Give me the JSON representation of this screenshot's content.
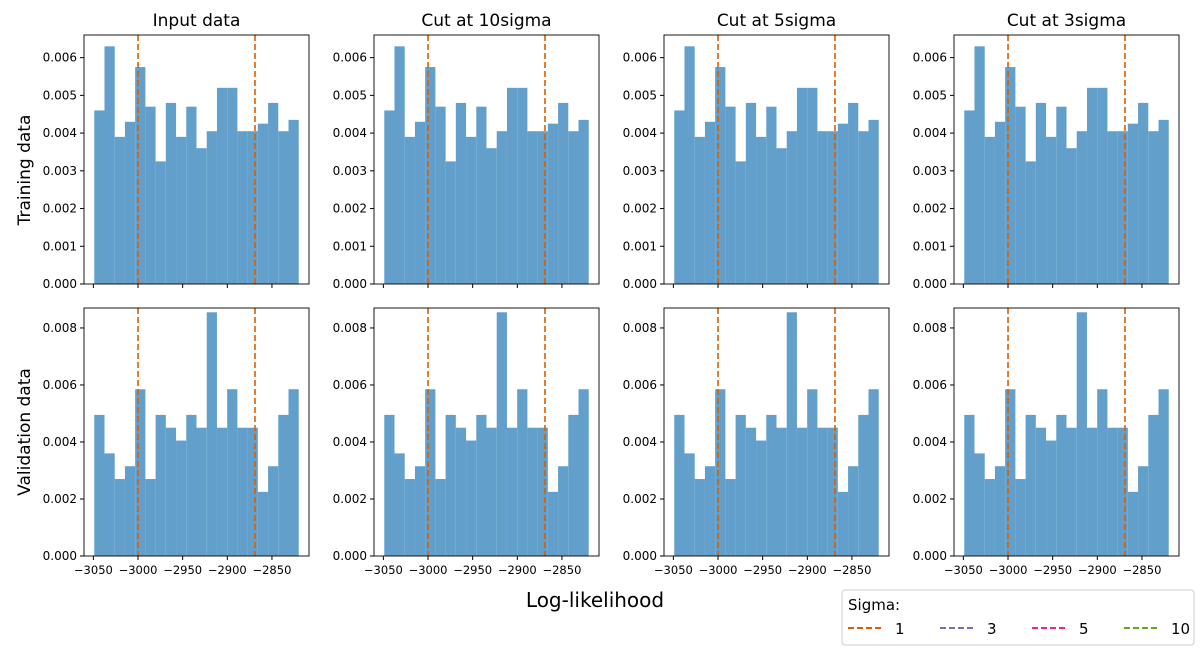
{
  "chart_data": [
    {
      "type": "histogram",
      "title": "Input data",
      "bins": [
        -3049,
        -3037.55,
        -3026.1,
        -3014.65,
        -3003.2,
        -2991.75,
        -2980.3,
        -2968.85,
        -2957.4,
        -2945.95,
        -2934.5,
        -2923.05,
        -2911.6,
        -2900.15,
        -2888.7,
        -2877.25,
        -2865.8,
        -2854.35,
        -2842.9,
        -2831.45,
        -2820
      ],
      "values": [
        0.0046,
        0.0063,
        0.0039,
        0.0043,
        0.00575,
        0.0047,
        0.00325,
        0.0048,
        0.0039,
        0.0047,
        0.0036,
        0.00405,
        0.0052,
        0.0052,
        0.00405,
        0.00405,
        0.00425,
        0.0048,
        0.00405,
        0.00435
      ],
      "color": "#62a0cb",
      "xlim": [
        -3060.5,
        -2808.5
      ],
      "xticks": [
        -3050,
        -3000,
        -2950,
        -2900,
        -2850
      ],
      "ylim": [
        0,
        0.0066
      ],
      "yticks": [
        {
          "value": 0,
          "label": "0.000"
        },
        {
          "value": 0.001,
          "label": "0.001"
        },
        {
          "value": 0.002,
          "label": "0.002"
        },
        {
          "value": 0.003,
          "label": "0.003"
        },
        {
          "value": 0.004,
          "label": "0.004"
        },
        {
          "value": 0.005,
          "label": "0.005"
        },
        {
          "value": 0.006,
          "label": "0.006"
        }
      ],
      "vlines": [
        -3000,
        -2869
      ],
      "vline_color": "#d95f02"
    },
    {
      "type": "histogram",
      "title": "Cut at 10sigma",
      "bins": [
        -3049,
        -3037.55,
        -3026.1,
        -3014.65,
        -3003.2,
        -2991.75,
        -2980.3,
        -2968.85,
        -2957.4,
        -2945.95,
        -2934.5,
        -2923.05,
        -2911.6,
        -2900.15,
        -2888.7,
        -2877.25,
        -2865.8,
        -2854.35,
        -2842.9,
        -2831.45,
        -2820
      ],
      "values": [
        0.0046,
        0.0063,
        0.0039,
        0.0043,
        0.00575,
        0.0047,
        0.00325,
        0.0048,
        0.0039,
        0.0047,
        0.0036,
        0.00405,
        0.0052,
        0.0052,
        0.00405,
        0.00405,
        0.00425,
        0.0048,
        0.00405,
        0.00435
      ],
      "color": "#62a0cb",
      "xlim": [
        -3060.5,
        -2808.5
      ],
      "xticks": [
        -3050,
        -3000,
        -2950,
        -2900,
        -2850
      ],
      "ylim": [
        0,
        0.0066
      ],
      "yticks": [
        {
          "value": 0,
          "label": "0.000"
        },
        {
          "value": 0.001,
          "label": "0.001"
        },
        {
          "value": 0.002,
          "label": "0.002"
        },
        {
          "value": 0.003,
          "label": "0.003"
        },
        {
          "value": 0.004,
          "label": "0.004"
        },
        {
          "value": 0.005,
          "label": "0.005"
        },
        {
          "value": 0.006,
          "label": "0.006"
        }
      ],
      "vlines": [
        -3000,
        -2869
      ],
      "vline_color": "#d95f02"
    },
    {
      "type": "histogram",
      "title": "Cut at 5sigma",
      "bins": [
        -3049,
        -3037.55,
        -3026.1,
        -3014.65,
        -3003.2,
        -2991.75,
        -2980.3,
        -2968.85,
        -2957.4,
        -2945.95,
        -2934.5,
        -2923.05,
        -2911.6,
        -2900.15,
        -2888.7,
        -2877.25,
        -2865.8,
        -2854.35,
        -2842.9,
        -2831.45,
        -2820
      ],
      "values": [
        0.0046,
        0.0063,
        0.0039,
        0.0043,
        0.00575,
        0.0047,
        0.00325,
        0.0048,
        0.0039,
        0.0047,
        0.0036,
        0.00405,
        0.0052,
        0.0052,
        0.00405,
        0.00405,
        0.00425,
        0.0048,
        0.00405,
        0.00435
      ],
      "color": "#62a0cb",
      "xlim": [
        -3060.5,
        -2808.5
      ],
      "xticks": [
        -3050,
        -3000,
        -2950,
        -2900,
        -2850
      ],
      "ylim": [
        0,
        0.0066
      ],
      "yticks": [
        {
          "value": 0,
          "label": "0.000"
        },
        {
          "value": 0.001,
          "label": "0.001"
        },
        {
          "value": 0.002,
          "label": "0.002"
        },
        {
          "value": 0.003,
          "label": "0.003"
        },
        {
          "value": 0.004,
          "label": "0.004"
        },
        {
          "value": 0.005,
          "label": "0.005"
        },
        {
          "value": 0.006,
          "label": "0.006"
        }
      ],
      "vlines": [
        -3000,
        -2869
      ],
      "vline_color": "#d95f02"
    },
    {
      "type": "histogram",
      "title": "Cut at 3sigma",
      "bins": [
        -3049,
        -3037.55,
        -3026.1,
        -3014.65,
        -3003.2,
        -2991.75,
        -2980.3,
        -2968.85,
        -2957.4,
        -2945.95,
        -2934.5,
        -2923.05,
        -2911.6,
        -2900.15,
        -2888.7,
        -2877.25,
        -2865.8,
        -2854.35,
        -2842.9,
        -2831.45,
        -2820
      ],
      "values": [
        0.0046,
        0.0063,
        0.0039,
        0.0043,
        0.00575,
        0.0047,
        0.00325,
        0.0048,
        0.0039,
        0.0047,
        0.0036,
        0.00405,
        0.0052,
        0.0052,
        0.00405,
        0.00405,
        0.00425,
        0.0048,
        0.00405,
        0.00435
      ],
      "color": "#62a0cb",
      "xlim": [
        -3060.5,
        -2808.5
      ],
      "xticks": [
        -3050,
        -3000,
        -2950,
        -2900,
        -2850
      ],
      "ylim": [
        0,
        0.0066
      ],
      "yticks": [
        {
          "value": 0,
          "label": "0.000"
        },
        {
          "value": 0.001,
          "label": "0.001"
        },
        {
          "value": 0.002,
          "label": "0.002"
        },
        {
          "value": 0.003,
          "label": "0.003"
        },
        {
          "value": 0.004,
          "label": "0.004"
        },
        {
          "value": 0.005,
          "label": "0.005"
        },
        {
          "value": 0.006,
          "label": "0.006"
        }
      ],
      "vlines": [
        -3000,
        -2869
      ],
      "vline_color": "#d95f02"
    },
    {
      "type": "histogram",
      "bins": [
        -3049,
        -3037.55,
        -3026.1,
        -3014.65,
        -3003.2,
        -2991.75,
        -2980.3,
        -2968.85,
        -2957.4,
        -2945.95,
        -2934.5,
        -2923.05,
        -2911.6,
        -2900.15,
        -2888.7,
        -2877.25,
        -2865.8,
        -2854.35,
        -2842.9,
        -2831.45,
        -2820
      ],
      "values": [
        0.00495,
        0.0036,
        0.0027,
        0.00315,
        0.00585,
        0.0027,
        0.00495,
        0.0045,
        0.00405,
        0.00495,
        0.0045,
        0.00855,
        0.0045,
        0.00585,
        0.0045,
        0.0045,
        0.00225,
        0.00315,
        0.00495,
        0.00585
      ],
      "color": "#62a0cb",
      "xlim": [
        -3060.5,
        -2808.5
      ],
      "xticks": [
        {
          "value": -3050,
          "label": "−3050"
        },
        {
          "value": -3000,
          "label": "−3000"
        },
        {
          "value": -2950,
          "label": "−2950"
        },
        {
          "value": -2900,
          "label": "−2900"
        },
        {
          "value": -2850,
          "label": "−2850"
        }
      ],
      "ylim": [
        0,
        0.0087
      ],
      "yticks": [
        {
          "value": 0,
          "label": "0.000"
        },
        {
          "value": 0.002,
          "label": "0.002"
        },
        {
          "value": 0.004,
          "label": "0.004"
        },
        {
          "value": 0.006,
          "label": "0.006"
        },
        {
          "value": 0.008,
          "label": "0.008"
        }
      ],
      "vlines": [
        -3000,
        -2869
      ],
      "vline_color": "#d95f02"
    },
    {
      "type": "histogram",
      "bins": [
        -3049,
        -3037.55,
        -3026.1,
        -3014.65,
        -3003.2,
        -2991.75,
        -2980.3,
        -2968.85,
        -2957.4,
        -2945.95,
        -2934.5,
        -2923.05,
        -2911.6,
        -2900.15,
        -2888.7,
        -2877.25,
        -2865.8,
        -2854.35,
        -2842.9,
        -2831.45,
        -2820
      ],
      "values": [
        0.00495,
        0.0036,
        0.0027,
        0.00315,
        0.00585,
        0.0027,
        0.00495,
        0.0045,
        0.00405,
        0.00495,
        0.0045,
        0.00855,
        0.0045,
        0.00585,
        0.0045,
        0.0045,
        0.00225,
        0.00315,
        0.00495,
        0.00585
      ],
      "color": "#62a0cb",
      "xlim": [
        -3060.5,
        -2808.5
      ],
      "xticks": [
        {
          "value": -3050,
          "label": "−3050"
        },
        {
          "value": -3000,
          "label": "−3000"
        },
        {
          "value": -2950,
          "label": "−2950"
        },
        {
          "value": -2900,
          "label": "−2900"
        },
        {
          "value": -2850,
          "label": "−2850"
        }
      ],
      "ylim": [
        0,
        0.0087
      ],
      "yticks": [
        {
          "value": 0,
          "label": "0.000"
        },
        {
          "value": 0.002,
          "label": "0.002"
        },
        {
          "value": 0.004,
          "label": "0.004"
        },
        {
          "value": 0.006,
          "label": "0.006"
        },
        {
          "value": 0.008,
          "label": "0.008"
        }
      ],
      "vlines": [
        -3000,
        -2869
      ],
      "vline_color": "#d95f02"
    },
    {
      "type": "histogram",
      "bins": [
        -3049,
        -3037.55,
        -3026.1,
        -3014.65,
        -3003.2,
        -2991.75,
        -2980.3,
        -2968.85,
        -2957.4,
        -2945.95,
        -2934.5,
        -2923.05,
        -2911.6,
        -2900.15,
        -2888.7,
        -2877.25,
        -2865.8,
        -2854.35,
        -2842.9,
        -2831.45,
        -2820
      ],
      "values": [
        0.00495,
        0.0036,
        0.0027,
        0.00315,
        0.00585,
        0.0027,
        0.00495,
        0.0045,
        0.00405,
        0.00495,
        0.0045,
        0.00855,
        0.0045,
        0.00585,
        0.0045,
        0.0045,
        0.00225,
        0.00315,
        0.00495,
        0.00585
      ],
      "color": "#62a0cb",
      "xlim": [
        -3060.5,
        -2808.5
      ],
      "xticks": [
        {
          "value": -3050,
          "label": "−3050"
        },
        {
          "value": -3000,
          "label": "−3000"
        },
        {
          "value": -2950,
          "label": "−2950"
        },
        {
          "value": -2900,
          "label": "−2900"
        },
        {
          "value": -2850,
          "label": "−2850"
        }
      ],
      "ylim": [
        0,
        0.0087
      ],
      "yticks": [
        {
          "value": 0,
          "label": "0.000"
        },
        {
          "value": 0.002,
          "label": "0.002"
        },
        {
          "value": 0.004,
          "label": "0.004"
        },
        {
          "value": 0.006,
          "label": "0.006"
        },
        {
          "value": 0.008,
          "label": "0.008"
        }
      ],
      "vlines": [
        -3000,
        -2869
      ],
      "vline_color": "#d95f02"
    },
    {
      "type": "histogram",
      "bins": [
        -3049,
        -3037.55,
        -3026.1,
        -3014.65,
        -3003.2,
        -2991.75,
        -2980.3,
        -2968.85,
        -2957.4,
        -2945.95,
        -2934.5,
        -2923.05,
        -2911.6,
        -2900.15,
        -2888.7,
        -2877.25,
        -2865.8,
        -2854.35,
        -2842.9,
        -2831.45,
        -2820
      ],
      "values": [
        0.00495,
        0.0036,
        0.0027,
        0.00315,
        0.00585,
        0.0027,
        0.00495,
        0.0045,
        0.00405,
        0.00495,
        0.0045,
        0.00855,
        0.0045,
        0.00585,
        0.0045,
        0.0045,
        0.00225,
        0.00315,
        0.00495,
        0.00585
      ],
      "color": "#62a0cb",
      "xlim": [
        -3060.5,
        -2808.5
      ],
      "xticks": [
        {
          "value": -3050,
          "label": "−3050"
        },
        {
          "value": -3000,
          "label": "−3000"
        },
        {
          "value": -2950,
          "label": "−2950"
        },
        {
          "value": -2900,
          "label": "−2900"
        },
        {
          "value": -2850,
          "label": "−2850"
        }
      ],
      "ylim": [
        0,
        0.0087
      ],
      "yticks": [
        {
          "value": 0,
          "label": "0.000"
        },
        {
          "value": 0.002,
          "label": "0.002"
        },
        {
          "value": 0.004,
          "label": "0.004"
        },
        {
          "value": 0.006,
          "label": "0.006"
        },
        {
          "value": 0.008,
          "label": "0.008"
        }
      ],
      "vlines": [
        -3000,
        -2869
      ],
      "vline_color": "#d95f02"
    }
  ],
  "row_labels": [
    "Training data",
    "Validation data"
  ],
  "xlabel": "Log-likelihood",
  "legend": {
    "title": "Sigma:",
    "entries": [
      {
        "label": "1",
        "color": "#d95f02"
      },
      {
        "label": "3",
        "color": "#7570b3"
      },
      {
        "label": "5",
        "color": "#e7298a"
      },
      {
        "label": "10",
        "color": "#66a61e"
      }
    ]
  }
}
